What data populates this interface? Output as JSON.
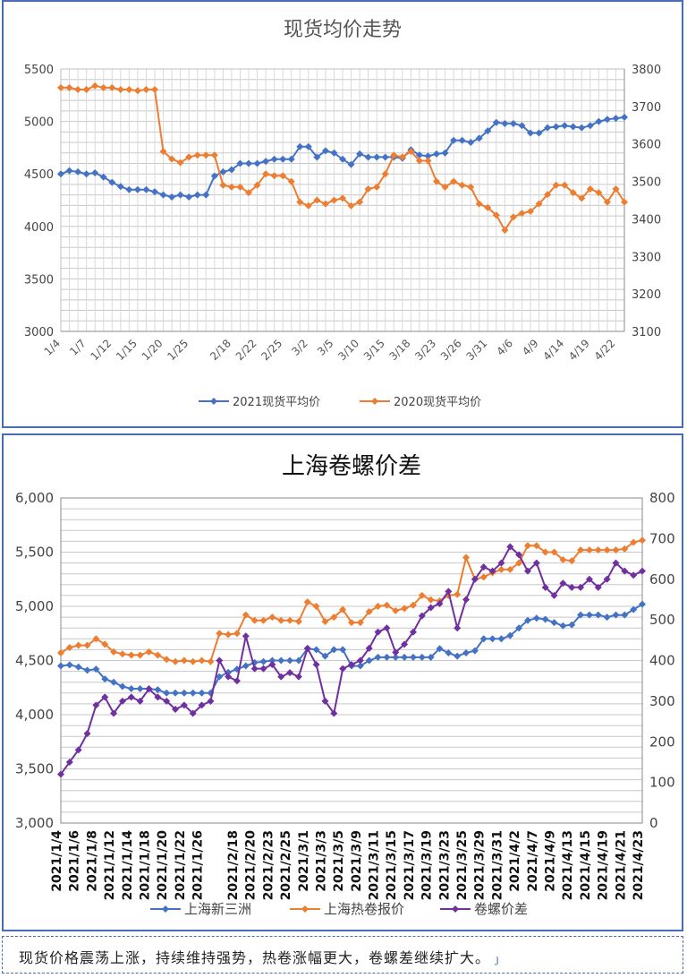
{
  "chart_data": [
    {
      "type": "line",
      "title": "现货均价走势",
      "xlabel": "",
      "ylabel": "",
      "categories": [
        "1/4",
        "1/5",
        "1/6",
        "1/7",
        "1/8",
        "1/11",
        "1/12",
        "1/13",
        "1/14",
        "1/15",
        "1/18",
        "1/19",
        "1/20",
        "1/21",
        "1/22",
        "1/25",
        "1/26",
        "1/27",
        "1/28",
        "1/29",
        "2/18",
        "2/19",
        "2/20",
        "2/22",
        "2/23",
        "2/24",
        "2/25",
        "2/26",
        "3/1",
        "3/2",
        "3/3",
        "3/4",
        "3/5",
        "3/8",
        "3/9",
        "3/10",
        "3/11",
        "3/12",
        "3/15",
        "3/16",
        "3/17",
        "3/18",
        "3/19",
        "3/22",
        "3/23",
        "3/24",
        "3/25",
        "3/26",
        "3/29",
        "3/30",
        "3/31",
        "4/1",
        "4/2",
        "4/6",
        "4/7",
        "4/8",
        "4/9",
        "4/12",
        "4/13",
        "4/14",
        "4/15",
        "4/16",
        "4/19",
        "4/20",
        "4/21",
        "4/22",
        "4/23"
      ],
      "tick_labels": [
        "1/4",
        "1/7",
        "1/12",
        "1/15",
        "1/20",
        "1/25",
        "2/18",
        "2/22",
        "2/25",
        "3/2",
        "3/5",
        "3/10",
        "3/15",
        "3/18",
        "3/23",
        "3/26",
        "3/31",
        "4/6",
        "4/9",
        "4/14",
        "4/19",
        "4/22"
      ],
      "ylim": [
        3000,
        5500
      ],
      "yticks": [
        3000,
        3500,
        4000,
        4500,
        5000,
        5500
      ],
      "y2lim": [
        3100,
        3800
      ],
      "y2ticks": [
        3100,
        3200,
        3300,
        3400,
        3500,
        3600,
        3700,
        3800
      ],
      "grid": true,
      "legend": "bottom",
      "series": [
        {
          "name": "2021现货平均价",
          "axis": "left",
          "color": "#4472c4",
          "marker": "diamond",
          "values": [
            4500,
            4530,
            4520,
            4500,
            4510,
            4470,
            4420,
            4380,
            4350,
            4350,
            4350,
            4330,
            4300,
            4280,
            4300,
            4280,
            4300,
            4300,
            4480,
            4520,
            4540,
            4600,
            4600,
            4600,
            4620,
            4640,
            4640,
            4640,
            4760,
            4760,
            4660,
            4720,
            4700,
            4640,
            4590,
            4690,
            4660,
            4660,
            4660,
            4660,
            4650,
            4730,
            4680,
            4670,
            4690,
            4700,
            4820,
            4820,
            4800,
            4840,
            4910,
            4990,
            4980,
            4980,
            4960,
            4890,
            4890,
            4940,
            4950,
            4960,
            4950,
            4940,
            4960,
            5000,
            5020,
            5030,
            5040
          ]
        },
        {
          "name": "2020现货平均价",
          "axis": "right",
          "color": "#ed7d31",
          "marker": "diamond",
          "values": [
            3750,
            3750,
            3745,
            3745,
            3755,
            3750,
            3750,
            3745,
            3745,
            3742,
            3745,
            3745,
            3580,
            3560,
            3550,
            3565,
            3570,
            3570,
            3570,
            3490,
            3485,
            3485,
            3470,
            3490,
            3520,
            3515,
            3515,
            3500,
            3445,
            3435,
            3450,
            3440,
            3450,
            3455,
            3435,
            3445,
            3480,
            3485,
            3520,
            3570,
            3565,
            3580,
            3555,
            3555,
            3500,
            3485,
            3500,
            3490,
            3485,
            3440,
            3430,
            3410,
            3370,
            3405,
            3415,
            3420,
            3440,
            3465,
            3490,
            3490,
            3470,
            3455,
            3480,
            3470,
            3445,
            3480,
            3445
          ]
        }
      ]
    },
    {
      "type": "line",
      "title": "上海卷螺价差",
      "xlabel": "",
      "ylabel": "",
      "categories": [
        "2021/1/4",
        "2021/1/5",
        "2021/1/6",
        "2021/1/7",
        "2021/1/8",
        "2021/1/11",
        "2021/1/12",
        "2021/1/13",
        "2021/1/14",
        "2021/1/15",
        "2021/1/18",
        "2021/1/19",
        "2021/1/20",
        "2021/1/21",
        "2021/1/22",
        "2021/1/25",
        "2021/1/26",
        "2021/1/27",
        "2021/1/28",
        "2021/1/29",
        "2021/2/18",
        "2021/2/19",
        "2021/2/20",
        "2021/2/22",
        "2021/2/23",
        "2021/2/24",
        "2021/2/25",
        "2021/2/26",
        "2021/3/1",
        "2021/3/2",
        "2021/3/3",
        "2021/3/4",
        "2021/3/5",
        "2021/3/8",
        "2021/3/9",
        "2021/3/10",
        "2021/3/11",
        "2021/3/12",
        "2021/3/15",
        "2021/3/16",
        "2021/3/17",
        "2021/3/18",
        "2021/3/19",
        "2021/3/22",
        "2021/3/23",
        "2021/3/24",
        "2021/3/25",
        "2021/3/26",
        "2021/3/29",
        "2021/3/30",
        "2021/3/31",
        "2021/4/1",
        "2021/4/2",
        "2021/4/6",
        "2021/4/7",
        "2021/4/8",
        "2021/4/9",
        "2021/4/12",
        "2021/4/13",
        "2021/4/14",
        "2021/4/15",
        "2021/4/16",
        "2021/4/19",
        "2021/4/20",
        "2021/4/21",
        "2021/4/22",
        "2021/4/23"
      ],
      "tick_labels": [
        "2021/1/4",
        "2021/1/6",
        "2021/1/8",
        "2021/1/12",
        "2021/1/14",
        "2021/1/18",
        "2021/1/20",
        "2021/1/22",
        "2021/1/26",
        "2021/2/18",
        "2021/2/20",
        "2021/2/23",
        "2021/2/25",
        "2021/3/1",
        "2021/3/3",
        "2021/3/5",
        "2021/3/9",
        "2021/3/11",
        "2021/3/15",
        "2021/3/17",
        "2021/3/19",
        "2021/3/23",
        "2021/3/25",
        "2021/3/29",
        "2021/3/31",
        "2021/4/2",
        "2021/4/7",
        "2021/4/9",
        "2021/4/13",
        "2021/4/15",
        "2021/4/19",
        "2021/4/21",
        "2021/4/23"
      ],
      "ylim": [
        3000,
        6000
      ],
      "yticks": [
        "3,000",
        "3,500",
        "4,000",
        "4,500",
        "5,000",
        "5,500",
        "6,000"
      ],
      "y2lim": [
        0,
        800
      ],
      "y2ticks": [
        0,
        100,
        200,
        300,
        400,
        500,
        600,
        700,
        800
      ],
      "grid": true,
      "legend": "bottom",
      "series": [
        {
          "name": "上海新三洲",
          "axis": "left",
          "color": "#4472c4",
          "marker": "diamond",
          "values": [
            4450,
            4460,
            4440,
            4410,
            4420,
            4330,
            4300,
            4260,
            4240,
            4240,
            4240,
            4230,
            4200,
            4200,
            4200,
            4200,
            4200,
            4200,
            4350,
            4390,
            4420,
            4450,
            4480,
            4490,
            4500,
            4500,
            4500,
            4500,
            4610,
            4600,
            4540,
            4600,
            4600,
            4450,
            4450,
            4500,
            4530,
            4530,
            4530,
            4530,
            4530,
            4530,
            4530,
            4610,
            4570,
            4540,
            4570,
            4590,
            4700,
            4700,
            4700,
            4730,
            4800,
            4870,
            4890,
            4880,
            4850,
            4820,
            4830,
            4920,
            4920,
            4920,
            4900,
            4920,
            4920,
            4970,
            5020
          ]
        },
        {
          "name": "上海热卷报价",
          "axis": "left",
          "color": "#ed7d31",
          "marker": "diamond",
          "values": [
            4570,
            4620,
            4640,
            4640,
            4700,
            4650,
            4580,
            4560,
            4550,
            4550,
            4580,
            4550,
            4510,
            4490,
            4500,
            4490,
            4500,
            4490,
            4750,
            4740,
            4750,
            4920,
            4870,
            4870,
            4900,
            4870,
            4870,
            4860,
            5040,
            5000,
            4860,
            4900,
            4970,
            4850,
            4850,
            4950,
            5000,
            5010,
            4960,
            4980,
            5010,
            5100,
            5060,
            5050,
            5100,
            5110,
            5450,
            5250,
            5270,
            5310,
            5340,
            5340,
            5400,
            5560,
            5560,
            5500,
            5500,
            5430,
            5420,
            5520,
            5520,
            5520,
            5520,
            5520,
            5530,
            5590,
            5610
          ]
        },
        {
          "name": "卷螺价差",
          "axis": "right",
          "color": "#7030a0",
          "marker": "diamond",
          "values": [
            120,
            150,
            180,
            220,
            290,
            310,
            270,
            300,
            310,
            300,
            330,
            310,
            300,
            280,
            290,
            270,
            290,
            300,
            400,
            360,
            350,
            460,
            380,
            380,
            390,
            360,
            370,
            360,
            430,
            390,
            300,
            270,
            380,
            390,
            400,
            430,
            470,
            480,
            420,
            440,
            470,
            510,
            530,
            540,
            570,
            480,
            550,
            600,
            630,
            620,
            640,
            680,
            660,
            620,
            640,
            580,
            560,
            590,
            580,
            580,
            600,
            580,
            600,
            640,
            620,
            610,
            620
          ]
        }
      ]
    }
  ],
  "caption": "现货价格震荡上涨，持续维持强势，热卷涨幅更大，卷螺差继续扩大。",
  "caption_mark": "ȷ"
}
